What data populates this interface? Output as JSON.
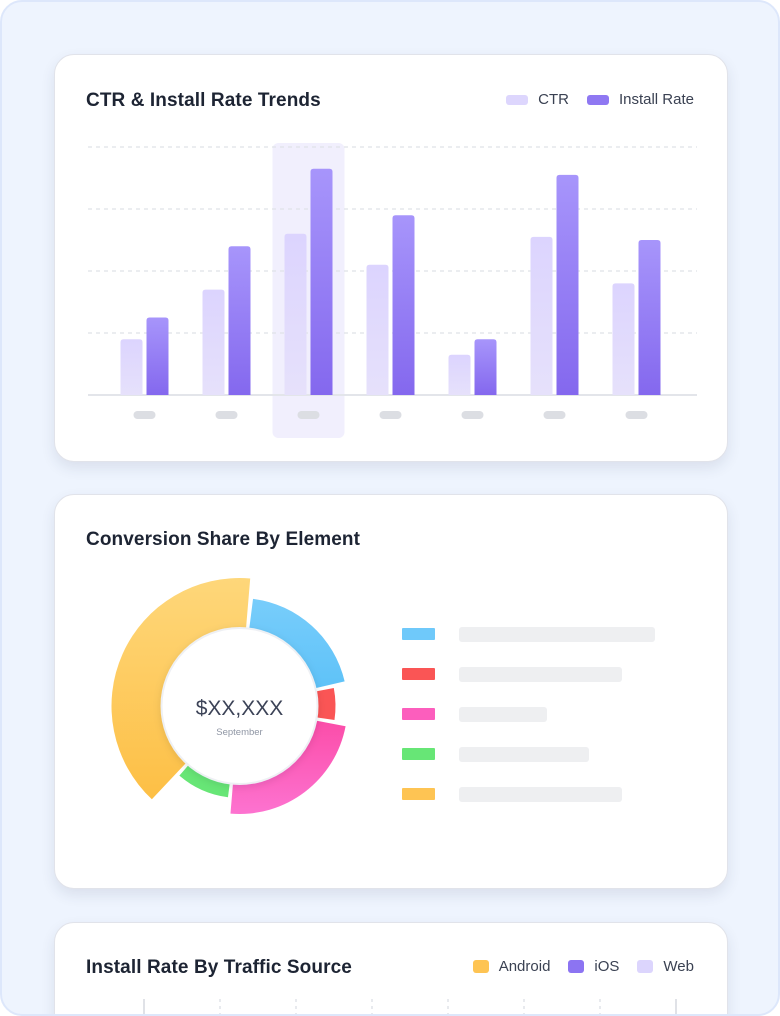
{
  "cards": {
    "trends": {
      "title": "CTR & Install Rate Trends",
      "legend": [
        {
          "label": "CTR",
          "color": "#ddd6fd"
        },
        {
          "label": "Install Rate",
          "color": "#8f78f2"
        }
      ]
    },
    "conversion": {
      "title": "Conversion Share By Element",
      "center_value": "$XX,XXX",
      "center_label": "September"
    },
    "traffic": {
      "title": "Install Rate By Traffic Source",
      "legend": [
        {
          "label": "Android",
          "color": "#fec453"
        },
        {
          "label": "iOS",
          "color": "#8c74f2"
        },
        {
          "label": "Web",
          "color": "#dcd5fd"
        }
      ]
    }
  },
  "chart_data": [
    {
      "type": "bar",
      "title": "CTR & Install Rate Trends",
      "categories": [
        "",
        "",
        "",
        "",
        "",
        "",
        ""
      ],
      "ylim": [
        0,
        4
      ],
      "grid": true,
      "legend_position": "top-right",
      "highlight_index": 2,
      "series": [
        {
          "name": "CTR",
          "color": "#ddd6fd",
          "values": [
            0.9,
            1.7,
            2.6,
            2.1,
            0.65,
            2.55,
            1.8
          ]
        },
        {
          "name": "Install Rate",
          "color": "#8f78f2",
          "values": [
            1.25,
            2.4,
            3.65,
            2.9,
            0.9,
            3.55,
            2.5
          ]
        }
      ]
    },
    {
      "type": "pie",
      "title": "Conversion Share By Element",
      "series": [
        {
          "color": "#6fc9fa",
          "values": [
            20,
            6,
            24,
            10,
            40
          ]
        }
      ],
      "slice_colors": [
        "#6fc9fa",
        "#fa5555",
        "#fc5ebd",
        "#67e676",
        "#fec453"
      ]
    }
  ]
}
